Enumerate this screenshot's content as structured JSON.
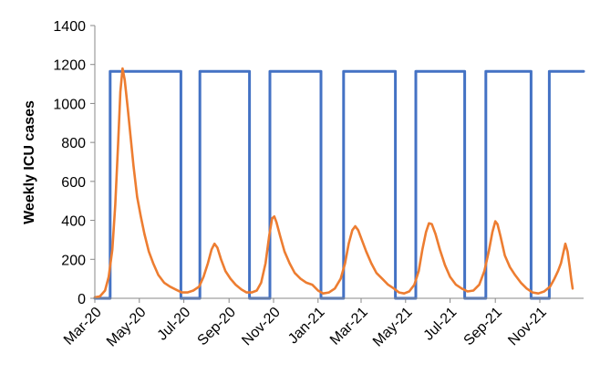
{
  "chart_data": {
    "type": "line",
    "title": "",
    "xlabel": "",
    "ylabel": "Weekly ICU cases",
    "ylim": [
      0,
      1400
    ],
    "yticks": [
      0,
      200,
      400,
      600,
      800,
      1000,
      1200,
      1400
    ],
    "xlim": [
      "2020-03-01",
      "2021-12-31"
    ],
    "xticks": [
      {
        "date": "2020-03-01",
        "label": "Mar-20"
      },
      {
        "date": "2020-05-01",
        "label": "May-20"
      },
      {
        "date": "2020-07-01",
        "label": "Jul-20"
      },
      {
        "date": "2020-09-01",
        "label": "Sep-20"
      },
      {
        "date": "2020-11-01",
        "label": "Nov-20"
      },
      {
        "date": "2021-01-01",
        "label": "Jan-21"
      },
      {
        "date": "2021-03-01",
        "label": "Mar-21"
      },
      {
        "date": "2021-05-01",
        "label": "May-21"
      },
      {
        "date": "2021-07-01",
        "label": "Jul-21"
      },
      {
        "date": "2021-09-01",
        "label": "Sep-21"
      },
      {
        "date": "2021-11-01",
        "label": "Nov-21"
      }
    ],
    "grid": false,
    "legend": "none",
    "series": [
      {
        "color": "#4472C4",
        "step": true,
        "points": [
          [
            "2020-03-01",
            0
          ],
          [
            "2020-03-22",
            0
          ],
          [
            "2020-03-22",
            1165
          ],
          [
            "2020-06-27",
            1165
          ],
          [
            "2020-06-27",
            0
          ],
          [
            "2020-07-23",
            0
          ],
          [
            "2020-07-23",
            1165
          ],
          [
            "2020-09-29",
            1165
          ],
          [
            "2020-09-29",
            0
          ],
          [
            "2020-10-27",
            0
          ],
          [
            "2020-10-27",
            1165
          ],
          [
            "2021-01-05",
            1165
          ],
          [
            "2021-01-05",
            0
          ],
          [
            "2021-02-05",
            0
          ],
          [
            "2021-02-05",
            1165
          ],
          [
            "2021-04-17",
            1165
          ],
          [
            "2021-04-17",
            0
          ],
          [
            "2021-05-15",
            0
          ],
          [
            "2021-05-15",
            1165
          ],
          [
            "2021-07-21",
            1165
          ],
          [
            "2021-07-21",
            0
          ],
          [
            "2021-08-19",
            0
          ],
          [
            "2021-08-19",
            1165
          ],
          [
            "2021-10-20",
            1165
          ],
          [
            "2021-10-20",
            0
          ],
          [
            "2021-11-14",
            0
          ],
          [
            "2021-11-14",
            1165
          ],
          [
            "2021-12-31",
            1165
          ]
        ]
      },
      {
        "color": "#ED7D31",
        "step": false,
        "points": [
          [
            "2020-03-01",
            5
          ],
          [
            "2020-03-08",
            10
          ],
          [
            "2020-03-15",
            40
          ],
          [
            "2020-03-20",
            110
          ],
          [
            "2020-03-25",
            250
          ],
          [
            "2020-03-29",
            480
          ],
          [
            "2020-04-02",
            800
          ],
          [
            "2020-04-05",
            1060
          ],
          [
            "2020-04-08",
            1180
          ],
          [
            "2020-04-11",
            1120
          ],
          [
            "2020-04-15",
            980
          ],
          [
            "2020-04-19",
            830
          ],
          [
            "2020-04-23",
            680
          ],
          [
            "2020-04-28",
            520
          ],
          [
            "2020-05-03",
            420
          ],
          [
            "2020-05-08",
            330
          ],
          [
            "2020-05-14",
            240
          ],
          [
            "2020-05-20",
            180
          ],
          [
            "2020-05-27",
            120
          ],
          [
            "2020-06-04",
            80
          ],
          [
            "2020-06-12",
            60
          ],
          [
            "2020-06-20",
            45
          ],
          [
            "2020-06-28",
            30
          ],
          [
            "2020-07-06",
            30
          ],
          [
            "2020-07-14",
            40
          ],
          [
            "2020-07-22",
            60
          ],
          [
            "2020-07-28",
            110
          ],
          [
            "2020-08-03",
            180
          ],
          [
            "2020-08-08",
            250
          ],
          [
            "2020-08-12",
            280
          ],
          [
            "2020-08-16",
            260
          ],
          [
            "2020-08-21",
            200
          ],
          [
            "2020-08-27",
            140
          ],
          [
            "2020-09-03",
            100
          ],
          [
            "2020-09-10",
            70
          ],
          [
            "2020-09-18",
            45
          ],
          [
            "2020-09-25",
            30
          ],
          [
            "2020-10-02",
            30
          ],
          [
            "2020-10-09",
            40
          ],
          [
            "2020-10-15",
            80
          ],
          [
            "2020-10-21",
            180
          ],
          [
            "2020-10-26",
            320
          ],
          [
            "2020-10-30",
            410
          ],
          [
            "2020-11-02",
            420
          ],
          [
            "2020-11-05",
            390
          ],
          [
            "2020-11-10",
            320
          ],
          [
            "2020-11-16",
            240
          ],
          [
            "2020-11-23",
            180
          ],
          [
            "2020-11-30",
            130
          ],
          [
            "2020-12-08",
            100
          ],
          [
            "2020-12-16",
            80
          ],
          [
            "2020-12-24",
            70
          ],
          [
            "2021-01-01",
            40
          ],
          [
            "2021-01-08",
            25
          ],
          [
            "2021-01-16",
            30
          ],
          [
            "2021-01-24",
            50
          ],
          [
            "2021-02-01",
            100
          ],
          [
            "2021-02-07",
            180
          ],
          [
            "2021-02-12",
            280
          ],
          [
            "2021-02-17",
            350
          ],
          [
            "2021-02-21",
            370
          ],
          [
            "2021-02-25",
            350
          ],
          [
            "2021-03-02",
            300
          ],
          [
            "2021-03-08",
            240
          ],
          [
            "2021-03-15",
            180
          ],
          [
            "2021-03-22",
            130
          ],
          [
            "2021-03-30",
            100
          ],
          [
            "2021-04-07",
            70
          ],
          [
            "2021-04-15",
            50
          ],
          [
            "2021-04-22",
            30
          ],
          [
            "2021-04-29",
            25
          ],
          [
            "2021-05-06",
            35
          ],
          [
            "2021-05-13",
            70
          ],
          [
            "2021-05-19",
            140
          ],
          [
            "2021-05-24",
            250
          ],
          [
            "2021-05-29",
            340
          ],
          [
            "2021-06-02",
            385
          ],
          [
            "2021-06-06",
            380
          ],
          [
            "2021-06-11",
            330
          ],
          [
            "2021-06-17",
            250
          ],
          [
            "2021-06-24",
            170
          ],
          [
            "2021-07-01",
            110
          ],
          [
            "2021-07-09",
            70
          ],
          [
            "2021-07-17",
            50
          ],
          [
            "2021-07-25",
            35
          ],
          [
            "2021-08-02",
            40
          ],
          [
            "2021-08-10",
            70
          ],
          [
            "2021-08-17",
            140
          ],
          [
            "2021-08-23",
            240
          ],
          [
            "2021-08-28",
            340
          ],
          [
            "2021-09-01",
            395
          ],
          [
            "2021-09-04",
            380
          ],
          [
            "2021-09-08",
            320
          ],
          [
            "2021-09-14",
            220
          ],
          [
            "2021-09-21",
            160
          ],
          [
            "2021-09-28",
            120
          ],
          [
            "2021-10-06",
            80
          ],
          [
            "2021-10-14",
            50
          ],
          [
            "2021-10-22",
            30
          ],
          [
            "2021-10-30",
            25
          ],
          [
            "2021-11-07",
            35
          ],
          [
            "2021-11-15",
            60
          ],
          [
            "2021-11-21",
            100
          ],
          [
            "2021-11-26",
            140
          ],
          [
            "2021-11-30",
            180
          ],
          [
            "2021-12-03",
            230
          ],
          [
            "2021-12-06",
            280
          ],
          [
            "2021-12-09",
            240
          ],
          [
            "2021-12-12",
            160
          ],
          [
            "2021-12-14",
            100
          ],
          [
            "2021-12-16",
            50
          ]
        ]
      }
    ]
  }
}
